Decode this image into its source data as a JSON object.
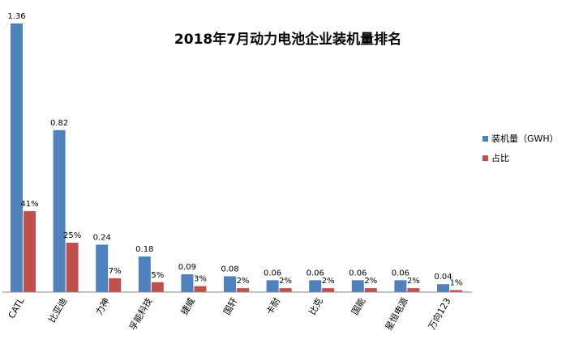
{
  "chart_data": {
    "type": "bar",
    "title": "2018年7月动力电池企业装机量排名",
    "categories": [
      "CATL",
      "比亚迪",
      "力神",
      "孚能科技",
      "捷威",
      "国轩",
      "卡耐",
      "比克",
      "国能",
      "星恒电源",
      "万向123"
    ],
    "series": [
      {
        "name": "装机量（GWH）",
        "color": "#4f81bd",
        "values": [
          1.36,
          0.82,
          0.24,
          0.18,
          0.09,
          0.08,
          0.06,
          0.06,
          0.06,
          0.06,
          0.04
        ],
        "labels": [
          "1.36",
          "0.82",
          "0.24",
          "0.18",
          "0.09",
          "0.08",
          "0.06",
          "0.06",
          "0.06",
          "0.06",
          "0.04"
        ]
      },
      {
        "name": "占比",
        "color": "#c0504d",
        "values": [
          0.41,
          0.25,
          0.07,
          0.05,
          0.03,
          0.02,
          0.02,
          0.02,
          0.02,
          0.02,
          0.01
        ],
        "labels": [
          "41%",
          "25%",
          "7%",
          "5%",
          "3%",
          "2%",
          "2%",
          "2%",
          "2%",
          "2%",
          "1%"
        ]
      }
    ],
    "ylim": [
      0,
      1.36
    ],
    "grid": false,
    "legend": "right"
  }
}
